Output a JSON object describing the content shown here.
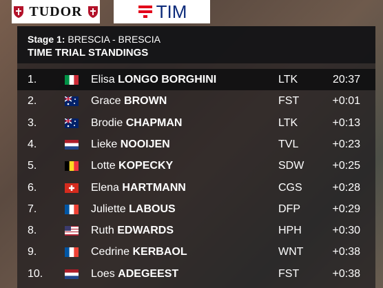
{
  "sponsors": {
    "left": "TUDOR",
    "right": "TIM"
  },
  "header": {
    "stage_label": "Stage 1:",
    "stage_route": "BRESCIA - BRESCIA",
    "title": "TIME TRIAL STANDINGS"
  },
  "rows": [
    {
      "rank": "1.",
      "first": "Elisa",
      "last": "LONGO BORGHINI",
      "team": "LTK",
      "time": "20:37"
    },
    {
      "rank": "2.",
      "first": "Grace",
      "last": "BROWN",
      "team": "FST",
      "time": "+0:01"
    },
    {
      "rank": "3.",
      "first": "Brodie",
      "last": "CHAPMAN",
      "team": "LTK",
      "time": "+0:13"
    },
    {
      "rank": "4.",
      "first": "Lieke",
      "last": "NOOIJEN",
      "team": "TVL",
      "time": "+0:23"
    },
    {
      "rank": "5.",
      "first": "Lotte",
      "last": "KOPECKY",
      "team": "SDW",
      "time": "+0:25"
    },
    {
      "rank": "6.",
      "first": "Elena",
      "last": "HARTMANN",
      "team": "CGS",
      "time": "+0:28"
    },
    {
      "rank": "7.",
      "first": "Juliette",
      "last": "LABOUS",
      "team": "DFP",
      "time": "+0:29"
    },
    {
      "rank": "8.",
      "first": "Ruth",
      "last": "EDWARDS",
      "team": "HPH",
      "time": "+0:30"
    },
    {
      "rank": "9.",
      "first": "Cedrine",
      "last": "KERBAOL",
      "team": "WNT",
      "time": "+0:38"
    },
    {
      "rank": "10.",
      "first": "Loes",
      "last": "ADEGEEST",
      "team": "FST",
      "time": "+0:38"
    }
  ]
}
